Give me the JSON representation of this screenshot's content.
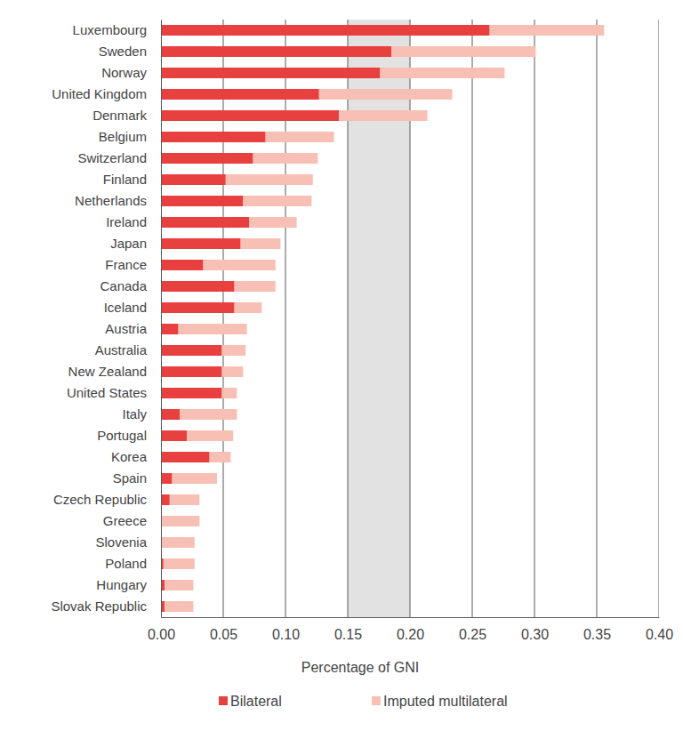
{
  "chart_data": {
    "type": "bar",
    "orientation": "horizontal",
    "stacked": true,
    "grid": true,
    "legend": "bottom",
    "x_label": "Percentage of GNI",
    "categories": [
      "Luxembourg",
      "Sweden",
      "Norway",
      "United Kingdom",
      "Denmark",
      "Belgium",
      "Switzerland",
      "Finland",
      "Netherlands",
      "Ireland",
      "Japan",
      "France",
      "Canada",
      "Iceland",
      "Austria",
      "Australia",
      "New Zealand",
      "United States",
      "Italy",
      "Portugal",
      "Korea",
      "Spain",
      "Czech Republic",
      "Greece",
      "Slovenia",
      "Poland",
      "Hungary",
      "Slovak Republic"
    ],
    "series": [
      {
        "name": "Bilateral",
        "color": "#e8403e",
        "values": [
          0.264,
          0.185,
          0.176,
          0.127,
          0.143,
          0.084,
          0.074,
          0.052,
          0.066,
          0.071,
          0.064,
          0.034,
          0.059,
          0.059,
          0.014,
          0.049,
          0.049,
          0.049,
          0.015,
          0.021,
          0.039,
          0.009,
          0.007,
          0.0,
          0.001,
          0.002,
          0.003,
          0.003
        ]
      },
      {
        "name": "Imputed multilateral",
        "color": "#f8c0b4",
        "values": [
          0.092,
          0.116,
          0.1,
          0.107,
          0.071,
          0.055,
          0.052,
          0.07,
          0.055,
          0.038,
          0.032,
          0.058,
          0.033,
          0.022,
          0.055,
          0.019,
          0.017,
          0.012,
          0.046,
          0.037,
          0.017,
          0.036,
          0.024,
          0.031,
          0.026,
          0.025,
          0.023,
          0.023
        ]
      }
    ],
    "highlight_range": [
      0.15,
      0.2
    ],
    "xlim": [
      0,
      0.4
    ],
    "xticks": [
      {
        "value": 0,
        "label": "0.00"
      },
      {
        "value": 0.05,
        "label": "0.05"
      },
      {
        "value": 0.1,
        "label": "0.10"
      },
      {
        "value": 0.15,
        "label": "0.15"
      },
      {
        "value": 0.2,
        "label": "0.20"
      },
      {
        "value": 0.25,
        "label": "0.25"
      },
      {
        "value": 0.3,
        "label": "0.30"
      },
      {
        "value": 0.35,
        "label": "0.35"
      },
      {
        "value": 0.4,
        "label": "0.40"
      }
    ]
  }
}
